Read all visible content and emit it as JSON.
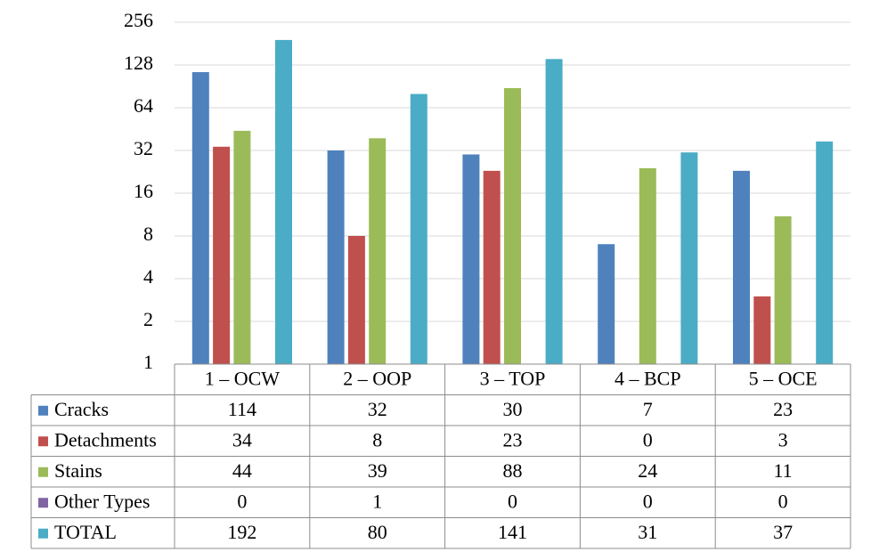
{
  "chart_data": {
    "type": "bar",
    "title": "",
    "xlabel": "",
    "ylabel": "",
    "yscale": "log2",
    "ylim": [
      1,
      256
    ],
    "yticks": [
      1,
      2,
      4,
      8,
      16,
      32,
      64,
      128,
      256
    ],
    "grid": true,
    "legend": "data-table",
    "categories": [
      "1 – OCW",
      "2 – OOP",
      "3 – TOP",
      "4 – BCP",
      "5 – OCE"
    ],
    "series": [
      {
        "name": "Cracks",
        "color": "#4f81bd",
        "values": [
          114,
          32,
          30,
          7,
          23
        ]
      },
      {
        "name": "Detachments",
        "color": "#c0504d",
        "values": [
          34,
          8,
          23,
          0,
          3
        ]
      },
      {
        "name": "Stains",
        "color": "#9bbb59",
        "values": [
          44,
          39,
          88,
          24,
          11
        ]
      },
      {
        "name": "Other Types",
        "color": "#8064a2",
        "values": [
          0,
          1,
          0,
          0,
          0
        ]
      },
      {
        "name": "TOTAL",
        "color": "#4bacc6",
        "values": [
          192,
          80,
          141,
          31,
          37
        ]
      }
    ]
  }
}
